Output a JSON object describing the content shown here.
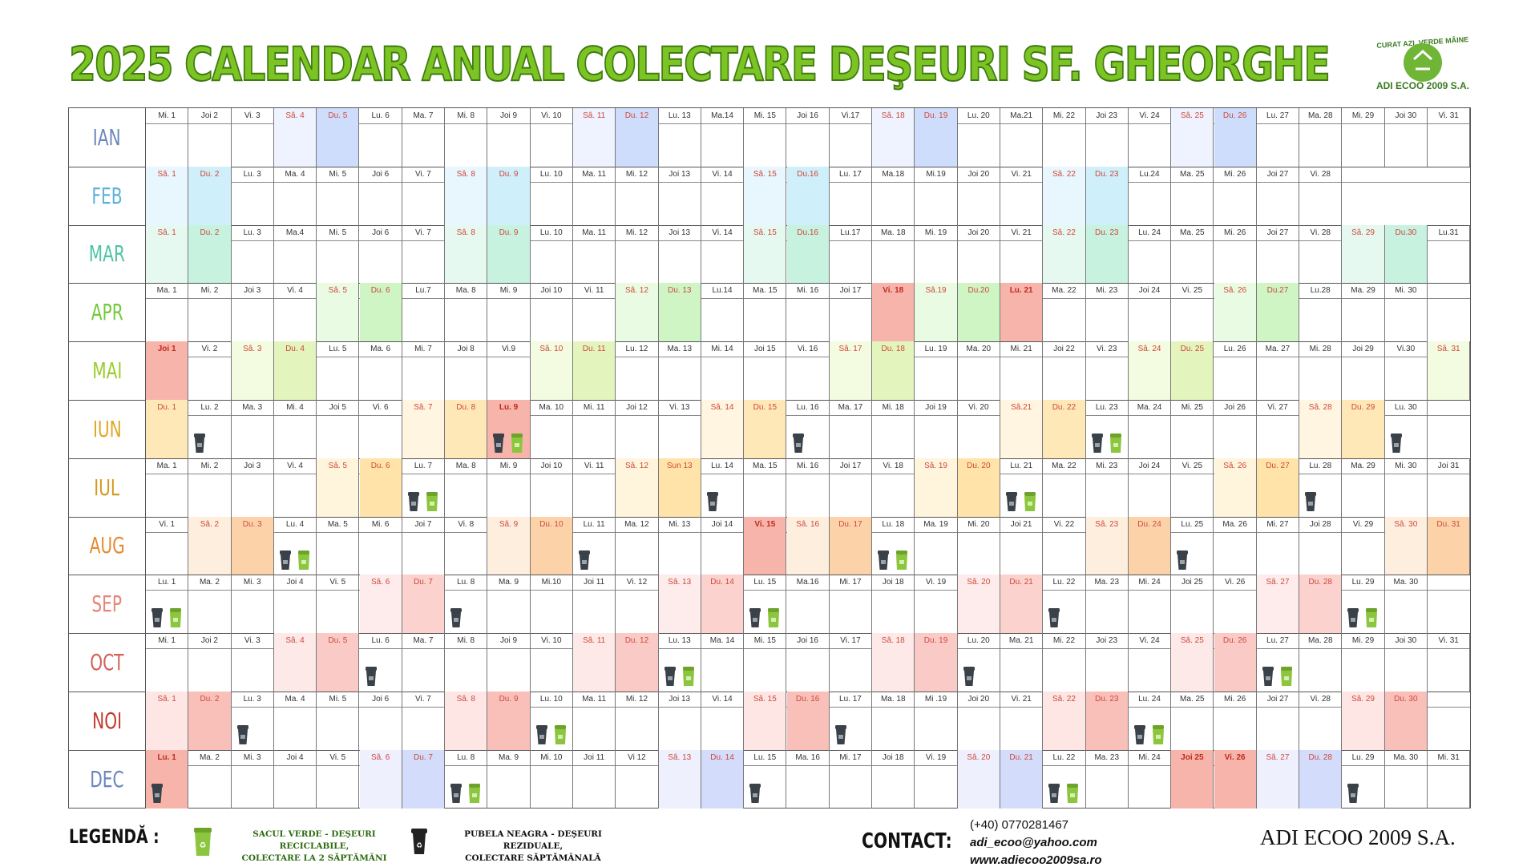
{
  "title": "2025 CALENDAR ANUAL COLECTARE DEŞEURI SF. GHEORGHE",
  "logo": {
    "name": "ADI ECOO 2009 S.A.",
    "arc_text": "CURAT AZI, VERDE MÂINE"
  },
  "colors": {
    "title_fill": "#7cc423",
    "title_stroke": "#3f7a12",
    "black_bin": "#3a4148",
    "green_bag": "#8cc63f"
  },
  "months": [
    {
      "label": "IAN",
      "color": "#6a86bd",
      "weekend": {
        "sa": "#eef3ff",
        "du": "#cfddfc"
      },
      "holiday": "#f7b4ab",
      "days": [
        "Mi. 1",
        "Joi 2",
        "Vi. 3",
        "Sâ. 4",
        "Du. 5",
        "Lu. 6",
        "Ma. 7",
        "Mi. 8",
        "Joi 9",
        "Vi. 10",
        "Sâ. 11",
        "Du. 12",
        "Lu. 13",
        "Ma.14",
        "Mi. 15",
        "Joi 16",
        "Vi.17",
        "Sâ. 18",
        "Du. 19",
        "Lu. 20",
        "Ma.21",
        "Mi. 22",
        "Joi 23",
        "Vi. 24",
        "Sâ. 25",
        "Du. 26",
        "Lu. 27",
        "Ma. 28",
        "Mi. 29",
        "Joi 30",
        "Vi. 31"
      ],
      "sa": [
        3,
        10,
        17,
        24
      ],
      "du": [
        4,
        11,
        18,
        25
      ],
      "hol": [],
      "bins": []
    },
    {
      "label": "FEB",
      "color": "#5db1d8",
      "weekend": {
        "sa": "#e8f6fd",
        "du": "#cfeffa"
      },
      "holiday": "#f7b4ab",
      "days": [
        "Sâ. 1",
        "Du. 2",
        "Lu. 3",
        "Ma. 4",
        "Mi. 5",
        "Joi 6",
        "Vi. 7",
        "Sâ. 8",
        "Du. 9",
        "Lu. 10",
        "Ma. 11",
        "Mi. 12",
        "Joi 13",
        "Vi. 14",
        "Sâ. 15",
        "Du.16",
        "Lu. 17",
        "Ma.18",
        "Mi.19",
        "Joi 20",
        "Vi. 21",
        "Sâ. 22",
        "Du. 23",
        "Lu.24",
        "Ma. 25",
        "Mi. 26",
        "Joi 27",
        "Vi. 28"
      ],
      "sa": [
        0,
        7,
        14,
        21
      ],
      "du": [
        1,
        8,
        15,
        22
      ],
      "hol": [],
      "bins": []
    },
    {
      "label": "MAR",
      "color": "#4fc3a4",
      "weekend": {
        "sa": "#e6f9f1",
        "du": "#c7f2e0"
      },
      "holiday": "#f7b4ab",
      "days": [
        "Sâ. 1",
        "Du. 2",
        "Lu. 3",
        "Ma.4",
        "Mi. 5",
        "Joi 6",
        "Vi. 7",
        "Sâ. 8",
        "Du. 9",
        "Lu. 10",
        "Ma. 11",
        "Mi. 12",
        "Joi 13",
        "Vi. 14",
        "Sâ. 15",
        "Du.16",
        "Lu.17",
        "Ma. 18",
        "Mi. 19",
        "Joi 20",
        "Vi. 21",
        "Sâ. 22",
        "Du. 23",
        "Lu. 24",
        "Ma. 25",
        "Mi. 26",
        "Joi 27",
        "Vi. 28",
        "Sâ. 29",
        "Du.30",
        "Lu.31"
      ],
      "sa": [
        0,
        7,
        14,
        21,
        28
      ],
      "du": [
        1,
        8,
        15,
        22,
        29
      ],
      "hol": [],
      "bins": []
    },
    {
      "label": "APR",
      "color": "#72c93a",
      "weekend": {
        "sa": "#eafbe3",
        "du": "#cff5c4"
      },
      "holiday": "#f7b4ab",
      "days": [
        "Ma. 1",
        "Mi. 2",
        "Joi 3",
        "Vi. 4",
        "Sâ. 5",
        "Du. 6",
        "Lu.7",
        "Ma. 8",
        "Mi. 9",
        "Joi 10",
        "Vi. 11",
        "Sâ. 12",
        "Du. 13",
        "Lu.14",
        "Ma. 15",
        "Mi. 16",
        "Joi 17",
        "Vi. 18",
        "Sâ.19",
        "Du.20",
        "Lu. 21",
        "Ma. 22",
        "Mi. 23",
        "Joi 24",
        "Vi. 25",
        "Sâ. 26",
        "Du.27",
        "Lu.28",
        "Ma. 29",
        "Mi. 30"
      ],
      "sa": [
        4,
        11,
        18,
        25
      ],
      "du": [
        5,
        12,
        19,
        26
      ],
      "hol": [
        17,
        20
      ],
      "bins": []
    },
    {
      "label": "MAI",
      "color": "#9ccc2b",
      "weekend": {
        "sa": "#f3fbe1",
        "du": "#e3f5bd"
      },
      "holiday": "#f7b4ab",
      "days": [
        "Joi 1",
        "Vi. 2",
        "Sâ. 3",
        "Du. 4",
        "Lu. 5",
        "Ma. 6",
        "Mi. 7",
        "Joi 8",
        "Vi.9",
        "Sâ. 10",
        "Du. 11",
        "Lu. 12",
        "Ma. 13",
        "Mi. 14",
        "Joi 15",
        "Vi. 16",
        "Sâ. 17",
        "Du. 18",
        "Lu. 19",
        "Ma. 20",
        "Mi. 21",
        "Joi 22",
        "Vi. 23",
        "Sâ. 24",
        "Du. 25",
        "Lu. 26",
        "Ma. 27",
        "Mi. 28",
        "Joi 29",
        "Vi.30",
        "Sâ. 31"
      ],
      "sa": [
        2,
        9,
        16,
        23,
        30
      ],
      "du": [
        3,
        10,
        17,
        24
      ],
      "hol": [
        0
      ],
      "bins": []
    },
    {
      "label": "IUN",
      "color": "#e0a624",
      "weekend": {
        "sa": "#fff5e1",
        "du": "#ffe8b8"
      },
      "holiday": "#f7b4ab",
      "days": [
        "Du. 1",
        "Lu. 2",
        "Ma. 3",
        "Mi. 4",
        "Joi 5",
        "Vi. 6",
        "Sâ. 7",
        "Du. 8",
        "Lu. 9",
        "Ma. 10",
        "Mi. 11",
        "Joi 12",
        "Vi. 13",
        "Sâ. 14",
        "Du. 15",
        "Lu. 16",
        "Ma. 17",
        "Mi. 18",
        "Joi 19",
        "Vi. 20",
        "Sâ.21",
        "Du. 22",
        "Lu. 23",
        "Ma. 24",
        "Mi. 25",
        "Joi 26",
        "Vi. 27",
        "Sâ. 28",
        "Du. 29",
        "Lu. 30"
      ],
      "sa": [
        6,
        13,
        20,
        27
      ],
      "du": [
        0,
        7,
        14,
        21,
        28
      ],
      "hol": [
        8
      ],
      "bins": [
        [
          1,
          "b"
        ],
        [
          8,
          "bg"
        ],
        [
          15,
          "b"
        ],
        [
          22,
          "bg"
        ],
        [
          29,
          "b"
        ]
      ]
    },
    {
      "label": "IUL",
      "color": "#d39a1c",
      "weekend": {
        "sa": "#fff4dc",
        "du": "#ffe3a8"
      },
      "holiday": "#f7b4ab",
      "days": [
        "Ma. 1",
        "Mi. 2",
        "Joi 3",
        "Vi. 4",
        "Sâ. 5",
        "Du. 6",
        "Lu. 7",
        "Ma. 8",
        "Mi. 9",
        "Joi 10",
        "Vi. 11",
        "Sâ. 12",
        "Sun 13",
        "Lu. 14",
        "Ma. 15",
        "Mi. 16",
        "Joi 17",
        "Vi. 18",
        "Sâ. 19",
        "Du. 20",
        "Lu. 21",
        "Ma. 22",
        "Mi. 23",
        "Joi 24",
        "Vi. 25",
        "Sâ. 26",
        "Du. 27",
        "Lu. 28",
        "Ma. 29",
        "Mi. 30",
        "Joi 31"
      ],
      "sa": [
        4,
        11,
        18,
        25
      ],
      "du": [
        5,
        12,
        19,
        26
      ],
      "hol": [],
      "bins": [
        [
          6,
          "bg"
        ],
        [
          13,
          "b"
        ],
        [
          20,
          "bg"
        ],
        [
          27,
          "b"
        ]
      ]
    },
    {
      "label": "AUG",
      "color": "#e58a2d",
      "weekend": {
        "sa": "#feeede",
        "du": "#fcd3a8"
      },
      "holiday": "#f7b4ab",
      "days": [
        "Vi. 1",
        "Sâ. 2",
        "Du. 3",
        "Lu. 4",
        "Ma. 5",
        "Mi. 6",
        "Joi 7",
        "Vi. 8",
        "Sâ. 9",
        "Du. 10",
        "Lu. 11",
        "Ma. 12",
        "Mi. 13",
        "Joi 14",
        "Vi. 15",
        "Sâ. 16",
        "Du. 17",
        "Lu. 18",
        "Ma. 19",
        "Mi. 20",
        "Joi 21",
        "Vi. 22",
        "Sâ. 23",
        "Du. 24",
        "Lu. 25",
        "Ma. 26",
        "Mi. 27",
        "Joi 28",
        "Vi. 29",
        "Sâ. 30",
        "Du. 31"
      ],
      "sa": [
        1,
        8,
        15,
        22,
        29
      ],
      "du": [
        2,
        9,
        16,
        23,
        30
      ],
      "hol": [
        14
      ],
      "bins": [
        [
          3,
          "bg"
        ],
        [
          10,
          "b"
        ],
        [
          17,
          "bg"
        ],
        [
          24,
          "b"
        ]
      ]
    },
    {
      "label": "SEP",
      "color": "#e5867c",
      "weekend": {
        "sa": "#fdeceb",
        "du": "#fbd2cd"
      },
      "holiday": "#f7b4ab",
      "days": [
        "Lu. 1",
        "Ma. 2",
        "Mi. 3",
        "Joi 4",
        "Vi. 5",
        "Sâ. 6",
        "Du. 7",
        "Lu. 8",
        "Ma. 9",
        "Mi.10",
        "Joi 11",
        "Vi. 12",
        "Sâ. 13",
        "Du. 14",
        "Lu. 15",
        "Ma.16",
        "Mi. 17",
        "Joi 18",
        "Vi. 19",
        "Sâ. 20",
        "Du. 21",
        "Lu. 22",
        "Ma. 23",
        "Mi. 24",
        "Joi 25",
        "Vi. 26",
        "Sâ. 27",
        "Du. 28",
        "Lu. 29",
        "Ma. 30"
      ],
      "sa": [
        5,
        12,
        19,
        26
      ],
      "du": [
        6,
        13,
        20,
        27
      ],
      "hol": [],
      "bins": [
        [
          0,
          "bg"
        ],
        [
          7,
          "b"
        ],
        [
          14,
          "bg"
        ],
        [
          21,
          "b"
        ],
        [
          28,
          "bg"
        ]
      ]
    },
    {
      "label": "OCT",
      "color": "#d2615a",
      "weekend": {
        "sa": "#fde9e7",
        "du": "#facbc6"
      },
      "holiday": "#f7b4ab",
      "days": [
        "Mi. 1",
        "Joi 2",
        "Vi. 3",
        "Sâ. 4",
        "Du. 5",
        "Lu. 6",
        "Ma. 7",
        "Mi. 8",
        "Joi 9",
        "Vi. 10",
        "Sâ. 11",
        "Du. 12",
        "Lu. 13",
        "Ma. 14",
        "Mi. 15",
        "Joi 16",
        "Vi. 17",
        "Sâ. 18",
        "Du. 19",
        "Lu. 20",
        "Ma. 21",
        "Mi. 22",
        "Joi 23",
        "Vi. 24",
        "Sâ. 25",
        "Du. 26",
        "Lu. 27",
        "Ma. 28",
        "Mi. 29",
        "Joi 30",
        "Vi. 31"
      ],
      "sa": [
        3,
        10,
        17,
        24
      ],
      "du": [
        4,
        11,
        18,
        25
      ],
      "hol": [],
      "bins": [
        [
          5,
          "b"
        ],
        [
          12,
          "bg"
        ],
        [
          19,
          "b"
        ],
        [
          26,
          "bg"
        ]
      ]
    },
    {
      "label": "NOI",
      "color": "#c0392b",
      "weekend": {
        "sa": "#fde6e3",
        "du": "#f9c0b9"
      },
      "holiday": "#f7b4ab",
      "days": [
        "Sâ. 1",
        "Du. 2",
        "Lu. 3",
        "Ma. 4",
        "Mi. 5",
        "Joi 6",
        "Vi. 7",
        "Sâ. 8",
        "Du. 9",
        "Lu. 10",
        "Ma. 11",
        "Mi. 12",
        "Joi 13",
        "Vi. 14",
        "Sâ. 15",
        "Du. 16",
        "Lu. 17",
        "Ma. 18",
        "Mi .19",
        "Joi 20",
        "Vi. 21",
        "Sâ. 22",
        "Du. 23",
        "Lu. 24",
        "Ma. 25",
        "Mi. 26",
        "Joi 27",
        "Vi. 28",
        "Sâ. 29",
        "Du. 30"
      ],
      "sa": [
        0,
        7,
        14,
        21,
        28
      ],
      "du": [
        1,
        8,
        15,
        22,
        29
      ],
      "hol": [],
      "bins": [
        [
          2,
          "b"
        ],
        [
          9,
          "bg"
        ],
        [
          16,
          "b"
        ],
        [
          23,
          "bg"
        ]
      ]
    },
    {
      "label": "DEC",
      "color": "#6a86bd",
      "weekend": {
        "sa": "#eef1fd",
        "du": "#d3dcfa"
      },
      "holiday": "#f7b4ab",
      "days": [
        "Lu. 1",
        "Ma. 2",
        "Mi. 3",
        "Joi 4",
        "Vi. 5",
        "Sâ. 6",
        "Du. 7",
        "Lu. 8",
        "Ma. 9",
        "Mi. 10",
        "Joi 11",
        "Vi 12",
        "Sâ. 13",
        "Du. 14",
        "Lu. 15",
        "Ma. 16",
        "Mi. 17",
        "Joi 18",
        "Vi. 19",
        "Sâ. 20",
        "Du. 21",
        "Lu. 22",
        "Ma. 23",
        "Mi. 24",
        "Joi 25",
        "Vi. 26",
        "Sâ. 27",
        "Du. 28",
        "Lu. 29",
        "Ma. 30",
        "Mi. 31"
      ],
      "sa": [
        5,
        12,
        19,
        26
      ],
      "du": [
        6,
        13,
        20,
        27
      ],
      "hol": [
        0,
        24,
        25
      ],
      "bins": [
        [
          0,
          "b"
        ],
        [
          7,
          "bg"
        ],
        [
          14,
          "b"
        ],
        [
          21,
          "bg"
        ],
        [
          28,
          "b"
        ]
      ]
    }
  ],
  "legend": {
    "title": "LEGENDĂ :",
    "green_text_1": "SACUL VERDE - DEŞEURI RECICLABILE,",
    "green_text_2": "COLECTARE LA 2 SĂPTĂMÂNI",
    "black_text_1": "PUBELA NEAGRA - DEŞEURI REZIDUALE,",
    "black_text_2": "COLECTARE SĂPTĂMÂNALĂ"
  },
  "contact": {
    "title": "CONTACT:",
    "phone": "(+40) 0770281467",
    "email": "adi_ecoo@yahoo.com",
    "web": "www.adiecoo2009sa.ro"
  },
  "brand": "ADI ECOO 2009 S.A."
}
